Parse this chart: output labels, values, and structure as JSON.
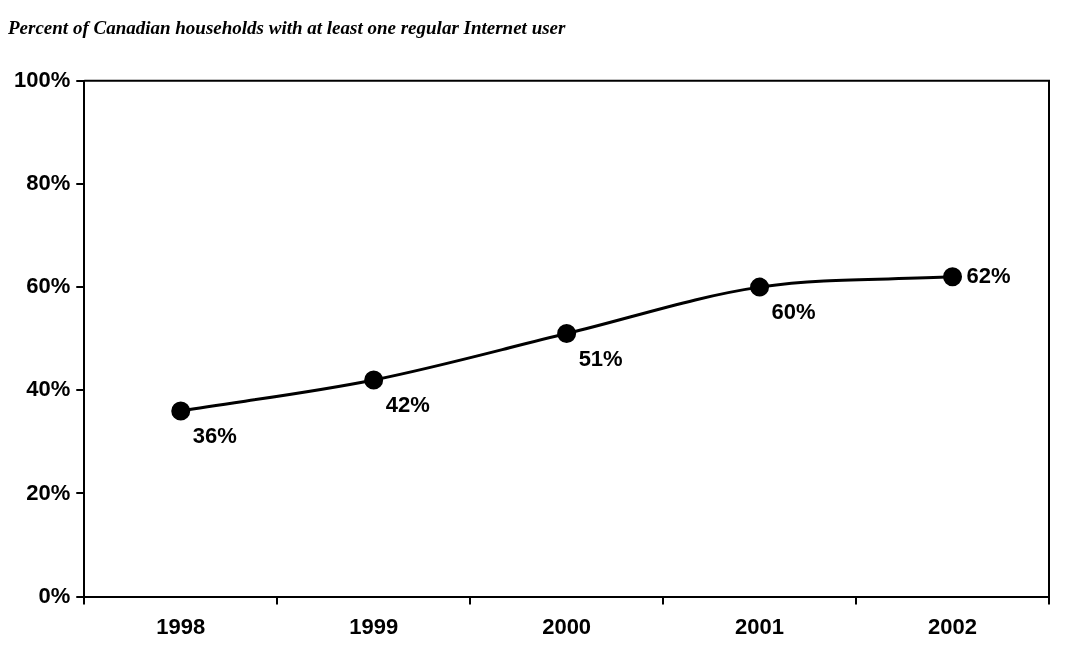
{
  "chart_data": {
    "type": "line",
    "title": "Percent of Canadian households with at least one regular Internet user",
    "categories": [
      "1998",
      "1999",
      "2000",
      "2001",
      "2002"
    ],
    "series": [
      {
        "color": "#000000",
        "values": [
          36,
          42,
          51,
          60,
          62
        ],
        "value_labels": [
          "36%",
          "42%",
          "51%",
          "60%",
          "62%"
        ]
      }
    ],
    "ylim": [
      0,
      100
    ],
    "yticks": [
      {
        "value": 0,
        "label": "0%"
      },
      {
        "value": 20,
        "label": "20%"
      },
      {
        "value": 40,
        "label": "40%"
      },
      {
        "value": 60,
        "label": "60%"
      },
      {
        "value": 80,
        "label": "80%"
      },
      {
        "value": 100,
        "label": "100%"
      }
    ],
    "grid": false,
    "legend": false,
    "marker": "circle",
    "line_style": "solid"
  }
}
